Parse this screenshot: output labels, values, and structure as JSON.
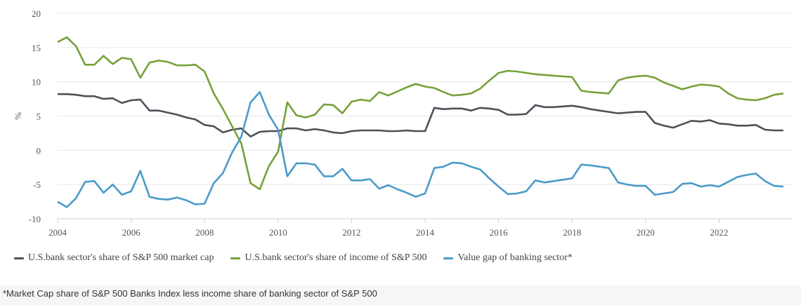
{
  "chart_data": {
    "type": "line",
    "ylabel": "%",
    "xlabel": "",
    "ylim": [
      -10,
      20
    ],
    "y_ticks": [
      -10,
      -5,
      0,
      5,
      10,
      15,
      20
    ],
    "xlim": [
      2004,
      2024
    ],
    "x_ticks": [
      2004,
      2006,
      2008,
      2010,
      2012,
      2014,
      2016,
      2018,
      2020,
      2022
    ],
    "grid": "horizontal",
    "legend_position": "bottom",
    "series": [
      {
        "name": "U.S.bank sector's share of S&P 500 market cap",
        "color": "#4b5258",
        "x": [
          2004.0,
          2004.25,
          2004.5,
          2004.75,
          2005.0,
          2005.25,
          2005.5,
          2005.75,
          2006.0,
          2006.25,
          2006.5,
          2006.75,
          2007.0,
          2007.25,
          2007.5,
          2007.75,
          2008.0,
          2008.25,
          2008.5,
          2008.75,
          2009.0,
          2009.25,
          2009.5,
          2009.75,
          2010.0,
          2010.25,
          2010.5,
          2010.75,
          2011.0,
          2011.25,
          2011.5,
          2011.75,
          2012.0,
          2012.25,
          2012.5,
          2012.75,
          2013.0,
          2013.25,
          2013.5,
          2013.75,
          2014.0,
          2014.25,
          2014.5,
          2014.75,
          2015.0,
          2015.25,
          2015.5,
          2015.75,
          2016.0,
          2016.25,
          2016.5,
          2016.75,
          2017.0,
          2017.25,
          2017.5,
          2017.75,
          2018.0,
          2018.25,
          2018.5,
          2018.75,
          2019.0,
          2019.25,
          2019.5,
          2019.75,
          2020.0,
          2020.25,
          2020.5,
          2020.75,
          2021.0,
          2021.25,
          2021.5,
          2021.75,
          2022.0,
          2022.25,
          2022.5,
          2022.75,
          2023.0,
          2023.25,
          2023.5,
          2023.75
        ],
        "values": [
          8.2,
          8.2,
          8.1,
          7.9,
          7.9,
          7.5,
          7.6,
          6.9,
          7.3,
          7.4,
          5.8,
          5.8,
          5.5,
          5.2,
          4.8,
          4.5,
          3.7,
          3.5,
          2.6,
          3.0,
          3.2,
          2.0,
          2.7,
          2.8,
          2.8,
          3.2,
          3.2,
          2.9,
          3.1,
          2.9,
          2.6,
          2.5,
          2.8,
          2.9,
          2.9,
          2.9,
          2.8,
          2.8,
          2.9,
          2.8,
          2.8,
          6.2,
          6.0,
          6.1,
          6.1,
          5.8,
          6.2,
          6.1,
          5.9,
          5.2,
          5.2,
          5.3,
          6.6,
          6.3,
          6.3,
          6.4,
          6.5,
          6.3,
          6.0,
          5.8,
          5.6,
          5.4,
          5.5,
          5.6,
          5.6,
          4.0,
          3.6,
          3.3,
          3.8,
          4.3,
          4.2,
          4.4,
          3.9,
          3.8,
          3.6,
          3.6,
          3.7,
          3.0,
          2.9,
          2.9
        ]
      },
      {
        "name": "U.S.bank sector's share of income of S&P 500",
        "color": "#76a13a",
        "x": [
          2004.0,
          2004.25,
          2004.5,
          2004.75,
          2005.0,
          2005.25,
          2005.5,
          2005.75,
          2006.0,
          2006.25,
          2006.5,
          2006.75,
          2007.0,
          2007.25,
          2007.5,
          2007.75,
          2008.0,
          2008.25,
          2008.5,
          2008.75,
          2009.0,
          2009.25,
          2009.5,
          2009.75,
          2010.0,
          2010.25,
          2010.5,
          2010.75,
          2011.0,
          2011.25,
          2011.5,
          2011.75,
          2012.0,
          2012.25,
          2012.5,
          2012.75,
          2013.0,
          2013.25,
          2013.5,
          2013.75,
          2014.0,
          2014.25,
          2014.5,
          2014.75,
          2015.0,
          2015.25,
          2015.5,
          2015.75,
          2016.0,
          2016.25,
          2016.5,
          2016.75,
          2017.0,
          2017.25,
          2017.5,
          2017.75,
          2018.0,
          2018.25,
          2018.5,
          2018.75,
          2019.0,
          2019.25,
          2019.5,
          2019.75,
          2020.0,
          2020.25,
          2020.5,
          2020.75,
          2021.0,
          2021.25,
          2021.5,
          2021.75,
          2022.0,
          2022.25,
          2022.5,
          2022.75,
          2023.0,
          2023.25,
          2023.5,
          2023.75
        ],
        "values": [
          15.8,
          16.5,
          15.2,
          12.5,
          12.5,
          13.8,
          12.6,
          13.5,
          13.3,
          10.6,
          12.8,
          13.1,
          12.9,
          12.4,
          12.4,
          12.5,
          11.5,
          8.3,
          6.0,
          3.5,
          1.0,
          -4.8,
          -5.7,
          -2.3,
          -0.2,
          7.0,
          5.1,
          4.8,
          5.2,
          6.7,
          6.6,
          5.4,
          7.1,
          7.4,
          7.2,
          8.5,
          8.0,
          8.6,
          9.2,
          9.7,
          9.3,
          9.1,
          8.5,
          8.0,
          8.1,
          8.3,
          9.0,
          10.2,
          11.3,
          11.6,
          11.5,
          11.3,
          11.1,
          11.0,
          10.9,
          10.8,
          10.7,
          8.7,
          8.5,
          8.4,
          8.3,
          10.2,
          10.6,
          10.8,
          10.9,
          10.6,
          9.9,
          9.4,
          8.9,
          9.3,
          9.6,
          9.5,
          9.3,
          8.3,
          7.6,
          7.4,
          7.3,
          7.6,
          8.1,
          8.3
        ]
      },
      {
        "name": "Value gap of banking sector*",
        "color": "#4b9ac9",
        "x": [
          2004.0,
          2004.25,
          2004.5,
          2004.75,
          2005.0,
          2005.25,
          2005.5,
          2005.75,
          2006.0,
          2006.25,
          2006.5,
          2006.75,
          2007.0,
          2007.25,
          2007.5,
          2007.75,
          2008.0,
          2008.25,
          2008.5,
          2008.75,
          2009.0,
          2009.25,
          2009.5,
          2009.75,
          2010.0,
          2010.25,
          2010.5,
          2010.75,
          2011.0,
          2011.25,
          2011.5,
          2011.75,
          2012.0,
          2012.25,
          2012.5,
          2012.75,
          2013.0,
          2013.25,
          2013.5,
          2013.75,
          2014.0,
          2014.25,
          2014.5,
          2014.75,
          2015.0,
          2015.25,
          2015.5,
          2015.75,
          2016.0,
          2016.25,
          2016.5,
          2016.75,
          2017.0,
          2017.25,
          2017.5,
          2017.75,
          2018.0,
          2018.25,
          2018.5,
          2018.75,
          2019.0,
          2019.25,
          2019.5,
          2019.75,
          2020.0,
          2020.25,
          2020.5,
          2020.75,
          2021.0,
          2021.25,
          2021.5,
          2021.75,
          2022.0,
          2022.25,
          2022.5,
          2022.75,
          2023.0,
          2023.25,
          2023.5,
          2023.75
        ],
        "values": [
          -7.5,
          -8.3,
          -7.0,
          -4.6,
          -4.5,
          -6.2,
          -5.0,
          -6.5,
          -6.0,
          -3.0,
          -6.8,
          -7.1,
          -7.2,
          -6.9,
          -7.3,
          -7.9,
          -7.8,
          -4.8,
          -3.3,
          -0.3,
          2.0,
          7.0,
          8.5,
          5.2,
          3.0,
          -3.8,
          -1.9,
          -1.9,
          -2.1,
          -3.8,
          -3.8,
          -2.7,
          -4.4,
          -4.4,
          -4.2,
          -5.6,
          -5.1,
          -5.7,
          -6.2,
          -6.8,
          -6.3,
          -2.6,
          -2.4,
          -1.8,
          -1.9,
          -2.4,
          -2.8,
          -4.1,
          -5.3,
          -6.4,
          -6.3,
          -6.0,
          -4.4,
          -4.7,
          -4.5,
          -4.3,
          -4.1,
          -2.1,
          -2.2,
          -2.4,
          -2.6,
          -4.7,
          -5.0,
          -5.2,
          -5.2,
          -6.5,
          -6.3,
          -6.1,
          -4.9,
          -4.8,
          -5.3,
          -5.1,
          -5.3,
          -4.6,
          -3.9,
          -3.6,
          -3.4,
          -4.5,
          -5.2,
          -5.3
        ]
      }
    ]
  },
  "footnote": "*Market Cap share of S&P 500 Banks Index less income share of banking sector of S&P 500"
}
